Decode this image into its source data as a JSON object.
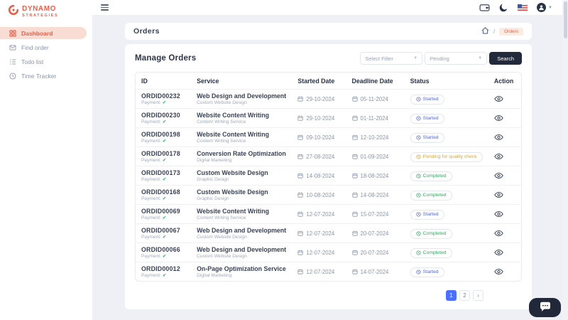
{
  "brand": {
    "line1": "DYNAMO",
    "line2": "STRATEGIES"
  },
  "sidebar": {
    "items": [
      {
        "label": "Dashboard",
        "icon": "dashboard-icon",
        "active": true
      },
      {
        "label": "Find order",
        "icon": "find-order-icon",
        "active": false
      },
      {
        "label": "Todo list",
        "icon": "todo-list-icon",
        "active": false
      },
      {
        "label": "Time Tracker",
        "icon": "time-tracker-icon",
        "active": false
      }
    ]
  },
  "topbar": {
    "icons": [
      "wallet-icon",
      "dark-mode-moon-icon",
      "language-flag-icon",
      "user-avatar",
      "chevron-down-icon"
    ]
  },
  "page": {
    "title": "Orders",
    "breadcrumb_separator": "/",
    "breadcrumb_current": "Orders"
  },
  "manage": {
    "title": "Manage Orders",
    "filter_select": "Select Filter",
    "status_select": "Pending",
    "search_label": "Search"
  },
  "table": {
    "headers": [
      "ID",
      "Service",
      "Started Date",
      "Deadline Date",
      "Status",
      "Action"
    ],
    "payment_label": "Payment:",
    "payment_check": "✔",
    "rows": [
      {
        "id": "ORDID00232",
        "service": "Web Design and Development",
        "category": "Custom Website Design",
        "started": "29-10-2024",
        "deadline": "05-11-2024",
        "status": "Started",
        "status_type": "started"
      },
      {
        "id": "ORDID00230",
        "service": "Website Content Writing",
        "category": "Content Writing Service",
        "started": "29-10-2024",
        "deadline": "01-11-2024",
        "status": "Started",
        "status_type": "started"
      },
      {
        "id": "ORDID00198",
        "service": "Website Content Writing",
        "category": "Content Writing Service",
        "started": "09-10-2024",
        "deadline": "12-10-2024",
        "status": "Started",
        "status_type": "started"
      },
      {
        "id": "ORDID00178",
        "service": "Conversion Rate Optimization",
        "category": "Digital Marketing",
        "started": "27-08-2024",
        "deadline": "01-09-2024",
        "status": "Pending for quality check",
        "status_type": "pending"
      },
      {
        "id": "ORDID00173",
        "service": "Custom Website Design",
        "category": "Graphic Design",
        "started": "14-08-2024",
        "deadline": "18-08-2024",
        "status": "Completed",
        "status_type": "completed"
      },
      {
        "id": "ORDID00168",
        "service": "Custom Website Design",
        "category": "Graphic Design",
        "started": "10-08-2024",
        "deadline": "14-08-2024",
        "status": "Completed",
        "status_type": "completed"
      },
      {
        "id": "ORDID00069",
        "service": "Website Content Writing",
        "category": "Content Writing Service",
        "started": "12-07-2024",
        "deadline": "15-07-2024",
        "status": "Started",
        "status_type": "started"
      },
      {
        "id": "ORDID00067",
        "service": "Web Design and Development",
        "category": "Custom Website Design",
        "started": "12-07-2024",
        "deadline": "20-07-2024",
        "status": "Completed",
        "status_type": "completed"
      },
      {
        "id": "ORDID00066",
        "service": "Web Design and Development",
        "category": "Custom Website Design",
        "started": "12-07-2024",
        "deadline": "20-07-2024",
        "status": "Completed",
        "status_type": "completed"
      },
      {
        "id": "ORDID00012",
        "service": "On-Page Optimization Service",
        "category": "Digital Marketing",
        "started": "12-07-2024",
        "deadline": "14-07-2024",
        "status": "Started",
        "status_type": "started"
      }
    ]
  },
  "pagination": {
    "page1": "1",
    "page2": "2",
    "next": "›"
  },
  "colors": {
    "accent": "#e8604c",
    "primary": "#4c6fff",
    "dark": "#232a3c",
    "started": "#5068e2",
    "completed": "#27ae60",
    "pending": "#dca52f"
  }
}
